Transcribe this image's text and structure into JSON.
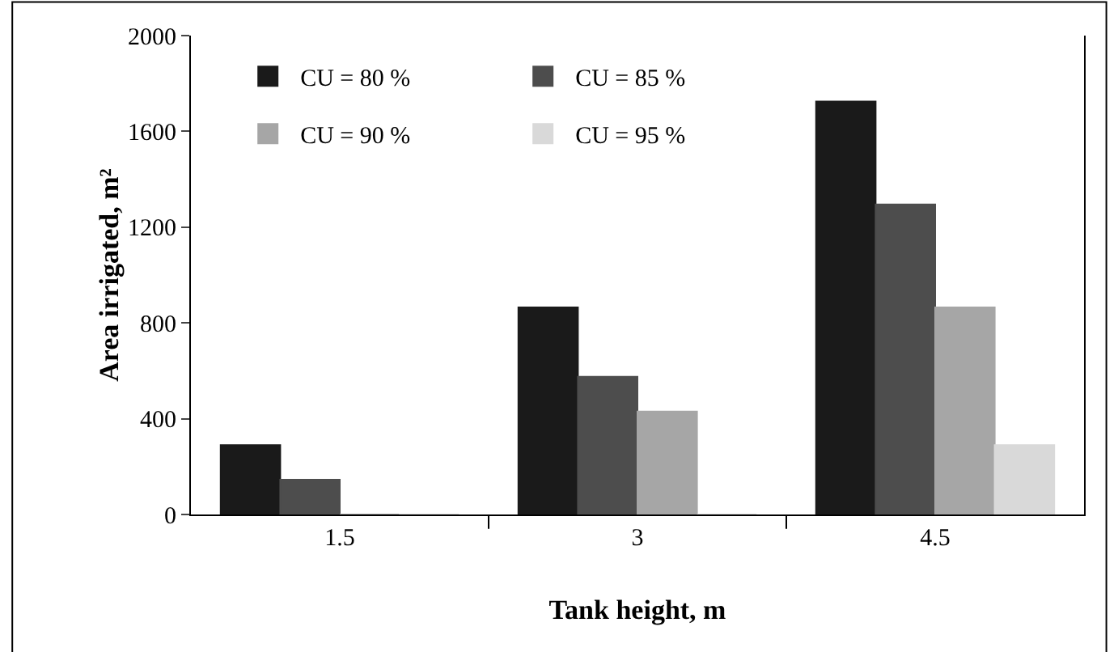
{
  "chart_data": {
    "type": "bar",
    "xlabel": "Tank height, m",
    "ylabel": "Area irrigated, m²",
    "categories": [
      "1.5",
      "3",
      "4.5"
    ],
    "series": [
      {
        "name": "CU = 80 %",
        "color": "#1a1a1a",
        "values": [
          290,
          865,
          1725
        ]
      },
      {
        "name": "CU = 85 %",
        "color": "#4d4d4d",
        "values": [
          145,
          575,
          1295
        ]
      },
      {
        "name": "CU = 90 %",
        "color": "#a6a6a6",
        "values": [
          0,
          430,
          865
        ]
      },
      {
        "name": "CU = 95 %",
        "color": "#d9d9d9",
        "values": [
          0,
          0,
          290
        ]
      }
    ],
    "ylim": [
      0,
      2000
    ],
    "yticks": [
      0,
      400,
      800,
      1200,
      1600,
      2000
    ],
    "grid": false,
    "legend": "top left"
  }
}
